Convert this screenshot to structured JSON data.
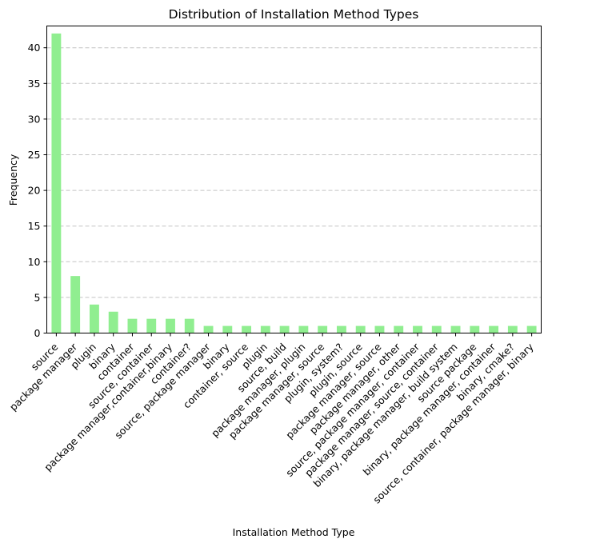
{
  "chart_data": {
    "type": "bar",
    "title": "Distribution of Installation Method Types",
    "xlabel": "Installation Method Type",
    "ylabel": "Frequency",
    "ylim": [
      0,
      43.05
    ],
    "yticks": [
      0,
      5,
      10,
      15,
      20,
      25,
      30,
      35,
      40
    ],
    "grid": "y-dashed",
    "color": "#90ee90",
    "categories": [
      "source",
      "package manager",
      "plugin",
      "binary",
      "container",
      "source, container",
      "package manager,container,binary",
      "container?",
      "source, package manager",
      "binary",
      "container, source",
      "plugin",
      "source, build",
      "package manager, plugin",
      "package manager, source",
      "plugin, system?",
      "plugin, source",
      "package manager, source",
      "package manager, other",
      "source, package manager, container",
      "package manager, source, container",
      "binary, package manager, build system",
      "source package",
      "binary, package manager, container",
      "binary, cmake?",
      "source, container, package manager, binary"
    ],
    "values": [
      42,
      8,
      4,
      3,
      2,
      2,
      2,
      2,
      1,
      1,
      1,
      1,
      1,
      1,
      1,
      1,
      1,
      1,
      1,
      1,
      1,
      1,
      1,
      1,
      1,
      1
    ]
  }
}
